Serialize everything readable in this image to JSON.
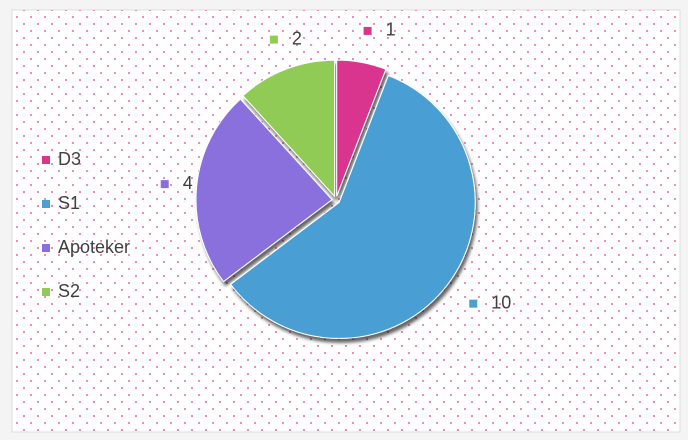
{
  "chart_data": {
    "type": "pie",
    "categories": [
      "D3",
      "S1",
      "Apoteker",
      "S2"
    ],
    "values": [
      1,
      10,
      4,
      2
    ],
    "colors": [
      "#d9368e",
      "#4a9fd3",
      "#8a6fdc",
      "#8fcb55"
    ],
    "legend": "left"
  }
}
